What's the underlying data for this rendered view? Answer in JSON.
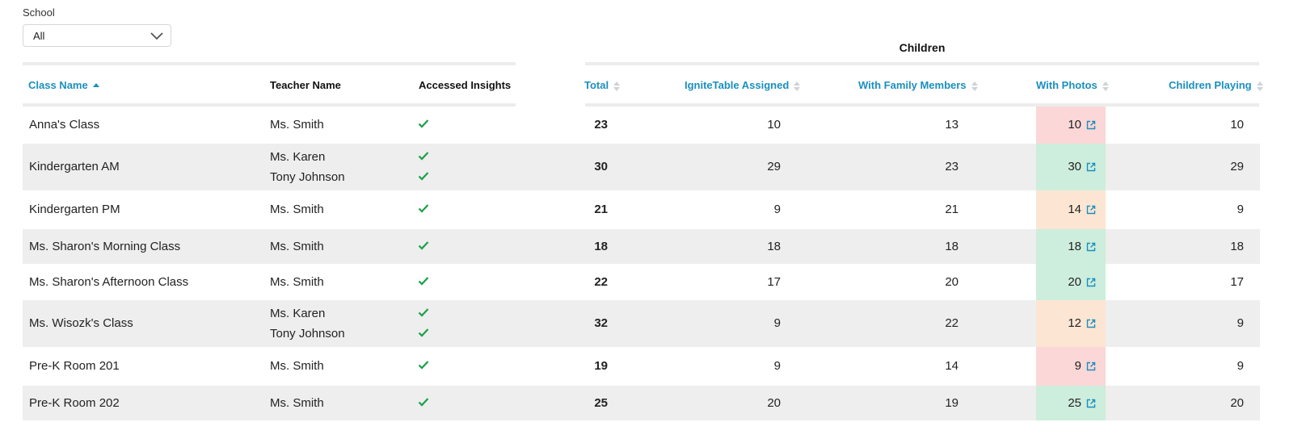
{
  "filter": {
    "label": "School",
    "value": "All"
  },
  "group_header": "Children",
  "columns": {
    "class_name": "Class Name",
    "teacher_name": "Teacher Name",
    "accessed_insights": "Accessed Insights",
    "total": "Total",
    "ignite": "IgniteTable Assigned",
    "family": "With Family Members",
    "photos": "With Photos",
    "playing": "Children Playing"
  },
  "colors": {
    "accent": "#1b8fbf",
    "check": "#1aa04b",
    "red_bg": "#fbd7d7",
    "green_bg": "#cdeedd",
    "orange_bg": "#fce5d3"
  },
  "rows": [
    {
      "class": "Anna's Class",
      "teachers": [
        "Ms. Smith"
      ],
      "total": "23",
      "ignite": "10",
      "family": "13",
      "photos": "10",
      "photo_status": "red",
      "playing": "10"
    },
    {
      "class": "Kindergarten AM",
      "teachers": [
        "Ms. Karen",
        "Tony Johnson"
      ],
      "total": "30",
      "ignite": "29",
      "family": "23",
      "photos": "30",
      "photo_status": "green",
      "playing": "29"
    },
    {
      "class": "Kindergarten PM",
      "teachers": [
        "Ms. Smith"
      ],
      "total": "21",
      "ignite": "9",
      "family": "21",
      "photos": "14",
      "photo_status": "orange",
      "playing": "9"
    },
    {
      "class": "Ms. Sharon's Morning Class",
      "teachers": [
        "Ms. Smith"
      ],
      "total": "18",
      "ignite": "18",
      "family": "18",
      "photos": "18",
      "photo_status": "green",
      "playing": "18"
    },
    {
      "class": "Ms. Sharon's Afternoon Class",
      "teachers": [
        "Ms. Smith"
      ],
      "total": "22",
      "ignite": "17",
      "family": "20",
      "photos": "20",
      "photo_status": "green",
      "playing": "17"
    },
    {
      "class": "Ms. Wisozk's Class",
      "teachers": [
        "Ms. Karen",
        "Tony Johnson"
      ],
      "total": "32",
      "ignite": "9",
      "family": "22",
      "photos": "12",
      "photo_status": "orange",
      "playing": "9"
    },
    {
      "class": "Pre-K Room 201",
      "teachers": [
        "Ms. Smith"
      ],
      "total": "19",
      "ignite": "9",
      "family": "14",
      "photos": "9",
      "photo_status": "red",
      "playing": "9"
    },
    {
      "class": "Pre-K Room 202",
      "teachers": [
        "Ms. Smith"
      ],
      "total": "25",
      "ignite": "20",
      "family": "19",
      "photos": "25",
      "photo_status": "green",
      "playing": "20"
    }
  ]
}
